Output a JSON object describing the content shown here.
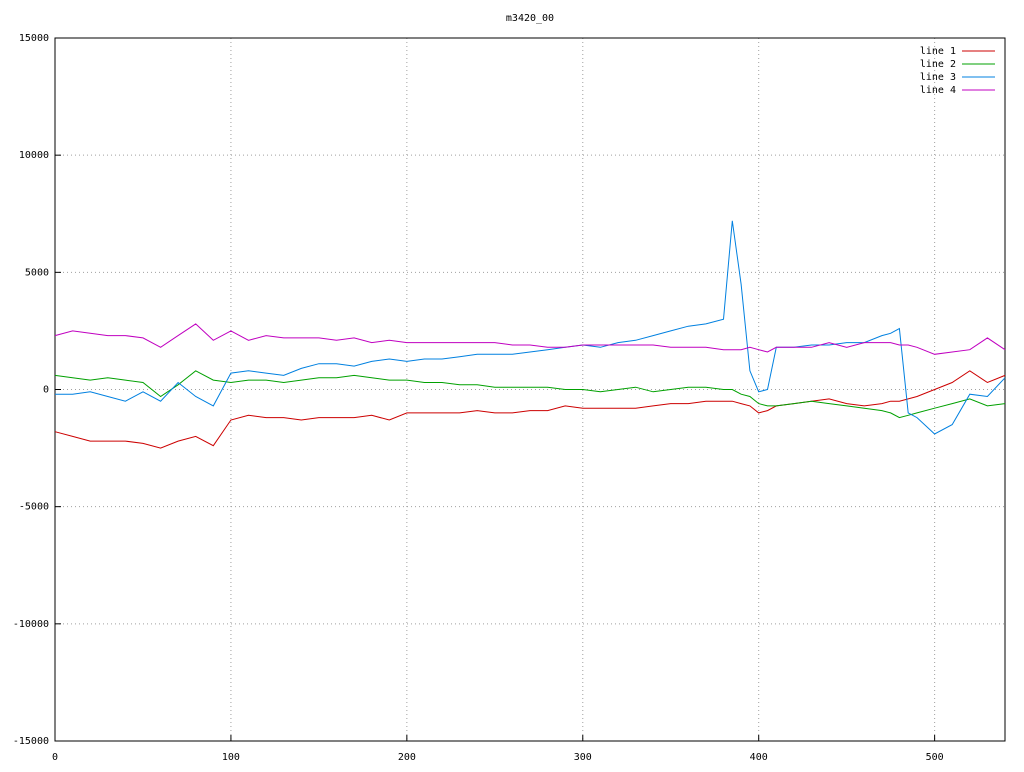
{
  "chart_data": {
    "type": "line",
    "title": "m3420_00",
    "x": [
      0,
      10,
      20,
      30,
      40,
      50,
      60,
      70,
      80,
      90,
      100,
      110,
      120,
      130,
      140,
      150,
      160,
      170,
      180,
      190,
      200,
      210,
      220,
      230,
      240,
      250,
      260,
      270,
      280,
      290,
      300,
      310,
      320,
      330,
      340,
      350,
      360,
      370,
      380,
      385,
      390,
      395,
      400,
      405,
      410,
      420,
      430,
      440,
      450,
      460,
      470,
      475,
      480,
      485,
      490,
      500,
      510,
      520,
      530,
      540
    ],
    "series": [
      {
        "name": "line 1",
        "color": "#cc0000",
        "values": [
          -1800,
          -2000,
          -2200,
          -2200,
          -2200,
          -2300,
          -2500,
          -2200,
          -2000,
          -2400,
          -1300,
          -1100,
          -1200,
          -1200,
          -1300,
          -1200,
          -1200,
          -1200,
          -1100,
          -1300,
          -1000,
          -1000,
          -1000,
          -1000,
          -900,
          -1000,
          -1000,
          -900,
          -900,
          -700,
          -800,
          -800,
          -800,
          -800,
          -700,
          -600,
          -600,
          -500,
          -500,
          -500,
          -600,
          -700,
          -1000,
          -900,
          -700,
          -600,
          -500,
          -400,
          -600,
          -700,
          -600,
          -500,
          -500,
          -400,
          -300,
          0,
          300,
          800,
          300,
          600
        ]
      },
      {
        "name": "line 2",
        "color": "#00a000",
        "values": [
          600,
          500,
          400,
          500,
          400,
          300,
          -300,
          200,
          800,
          400,
          300,
          400,
          400,
          300,
          400,
          500,
          500,
          600,
          500,
          400,
          400,
          300,
          300,
          200,
          200,
          100,
          100,
          100,
          100,
          0,
          0,
          -100,
          0,
          100,
          -100,
          0,
          100,
          100,
          0,
          0,
          -200,
          -300,
          -600,
          -700,
          -700,
          -600,
          -500,
          -600,
          -700,
          -800,
          -900,
          -1000,
          -1200,
          -1100,
          -1000,
          -800,
          -600,
          -400,
          -700,
          -600
        ]
      },
      {
        "name": "line 3",
        "color": "#0080e0",
        "values": [
          -200,
          -200,
          -100,
          -300,
          -500,
          -100,
          -500,
          300,
          -300,
          -700,
          700,
          800,
          700,
          600,
          900,
          1100,
          1100,
          1000,
          1200,
          1300,
          1200,
          1300,
          1300,
          1400,
          1500,
          1500,
          1500,
          1600,
          1700,
          1800,
          1900,
          1800,
          2000,
          2100,
          2300,
          2500,
          2700,
          2800,
          3000,
          7200,
          4500,
          800,
          -100,
          0,
          1800,
          1800,
          1900,
          1900,
          2000,
          2000,
          2300,
          2400,
          2600,
          -1000,
          -1200,
          -1900,
          -1500,
          -200,
          -300,
          500
        ]
      },
      {
        "name": "line 4",
        "color": "#c000c0",
        "values": [
          2300,
          2500,
          2400,
          2300,
          2300,
          2200,
          1800,
          2300,
          2800,
          2100,
          2500,
          2100,
          2300,
          2200,
          2200,
          2200,
          2100,
          2200,
          2000,
          2100,
          2000,
          2000,
          2000,
          2000,
          2000,
          2000,
          1900,
          1900,
          1800,
          1800,
          1900,
          1900,
          1900,
          1900,
          1900,
          1800,
          1800,
          1800,
          1700,
          1700,
          1700,
          1800,
          1700,
          1600,
          1800,
          1800,
          1800,
          2000,
          1800,
          2000,
          2000,
          2000,
          1900,
          1900,
          1800,
          1500,
          1600,
          1700,
          2200,
          1700
        ]
      }
    ],
    "xlim": [
      0,
      540
    ],
    "xticks": [
      0,
      100,
      200,
      300,
      400,
      500
    ],
    "ylim": [
      -15000,
      15000
    ],
    "yticks": [
      -15000,
      -10000,
      -5000,
      0,
      5000,
      10000,
      15000
    ],
    "grid": true,
    "legend": "top-right"
  }
}
